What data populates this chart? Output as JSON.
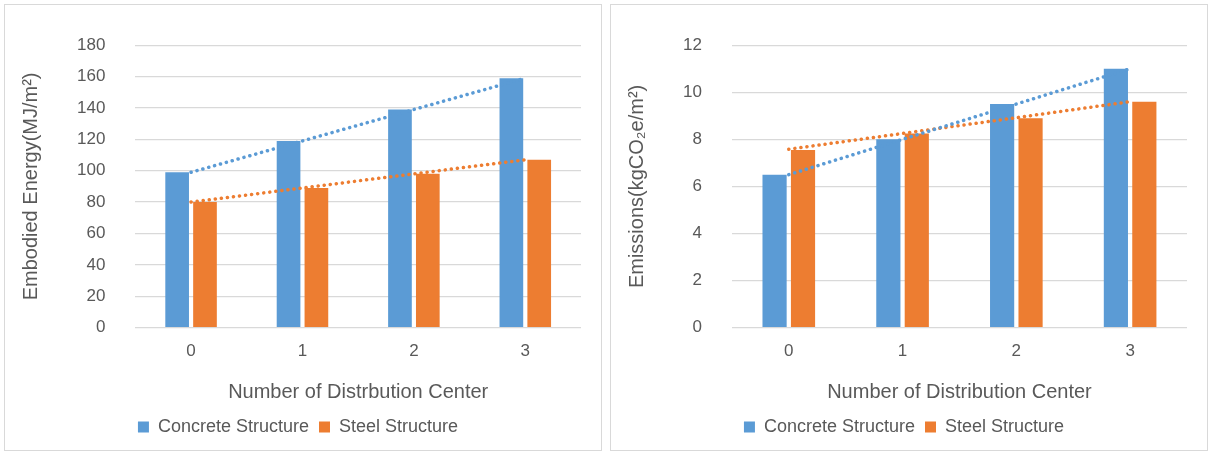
{
  "chart_data": [
    {
      "type": "bar",
      "xlabel": "Number of Distrbution Center",
      "ylabel": "Embodied Energy(MJ/m²)",
      "categories": [
        "0",
        "1",
        "2",
        "3"
      ],
      "ylim": [
        0,
        180
      ],
      "yticks": [
        0,
        20,
        40,
        60,
        80,
        100,
        120,
        140,
        160,
        180
      ],
      "grid": "y",
      "legend": "bottom",
      "series": [
        {
          "name": "Concrete Structure",
          "color": "#5b9bd5",
          "values": [
            99,
            119,
            139,
            159
          ]
        },
        {
          "name": "Steel Structure",
          "color": "#ed7d31",
          "values": [
            80,
            89,
            98,
            107
          ]
        },
        {
          "type": "line",
          "color": "#5b9bd5",
          "line_style": "dotted",
          "marker": "none",
          "values": [
            99,
            119,
            139,
            159
          ]
        },
        {
          "type": "line",
          "color": "#ed7d31",
          "line_style": "dotted",
          "marker": "none",
          "values": [
            80,
            89,
            98,
            107
          ]
        }
      ]
    },
    {
      "type": "bar",
      "xlabel": "Number of Distribution Center",
      "ylabel": "Emissions(kgCO₂e/m²)",
      "categories": [
        "0",
        "1",
        "2",
        "3"
      ],
      "ylim": [
        0,
        12
      ],
      "yticks": [
        0,
        2,
        4,
        6,
        8,
        10,
        12
      ],
      "grid": "y",
      "legend": "bottom",
      "series": [
        {
          "name": "Concrete Structure",
          "color": "#5b9bd5",
          "values": [
            6.5,
            8.0,
            9.5,
            11.0
          ]
        },
        {
          "name": "Steel Structure",
          "color": "#ed7d31",
          "values": [
            7.55,
            8.25,
            8.9,
            9.6
          ]
        },
        {
          "type": "line",
          "color": "#5b9bd5",
          "line_style": "dotted",
          "marker": "none",
          "values": [
            6.5,
            8.0,
            9.5,
            11.0
          ]
        },
        {
          "type": "line",
          "color": "#ed7d31",
          "line_style": "dotted",
          "marker": "none",
          "values": [
            7.58,
            8.25,
            8.92,
            9.6
          ]
        }
      ]
    }
  ]
}
